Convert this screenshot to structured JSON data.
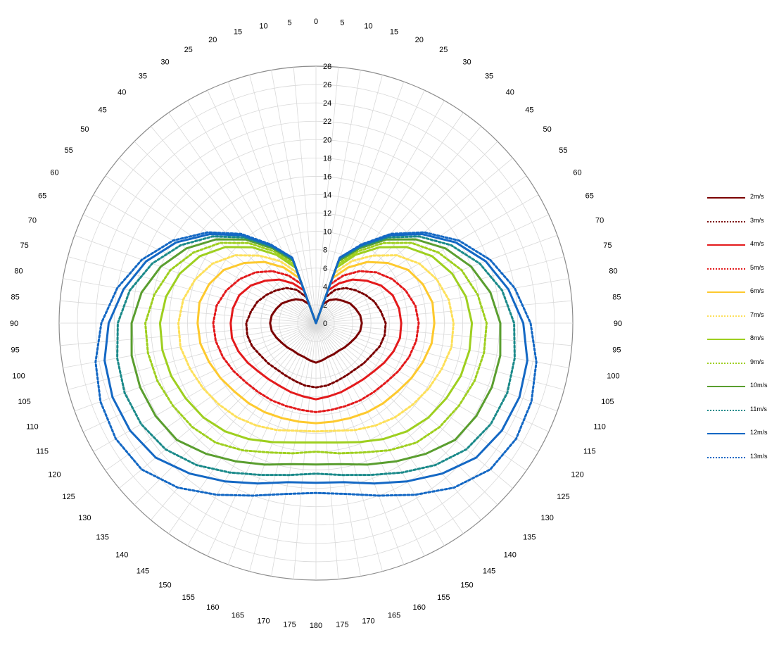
{
  "chart_data": {
    "type": "polar",
    "title": "",
    "radial_axis": {
      "min": 0,
      "max": 28,
      "tick_step": 2,
      "ticks": [
        "0",
        "2",
        "4",
        "6",
        "8",
        "10",
        "12",
        "14",
        "16",
        "18",
        "20",
        "22",
        "24",
        "26",
        "28"
      ]
    },
    "angular_axis": {
      "unit": "degrees",
      "step": 5,
      "mirrored": true,
      "right_labels": [
        "0",
        "5",
        "10",
        "15",
        "20",
        "25",
        "30",
        "35",
        "40",
        "45",
        "50",
        "55",
        "60",
        "65",
        "70",
        "75",
        "80",
        "85",
        "90",
        "95",
        "100",
        "105",
        "110",
        "115",
        "120",
        "125",
        "130",
        "135",
        "140",
        "145",
        "150",
        "155",
        "160",
        "165",
        "170",
        "175",
        "180"
      ],
      "left_labels": [
        "5",
        "10",
        "15",
        "20",
        "25",
        "30",
        "35",
        "40",
        "45",
        "50",
        "55",
        "60",
        "65",
        "70",
        "75",
        "80",
        "85",
        "90",
        "95",
        "100",
        "105",
        "110",
        "115",
        "120",
        "125",
        "130",
        "135",
        "140",
        "145",
        "150",
        "155",
        "160",
        "165",
        "170",
        "175"
      ]
    },
    "grid": true,
    "legend_position": "right",
    "angles": [
      0,
      20,
      30,
      40,
      50,
      60,
      70,
      80,
      90,
      100,
      110,
      120,
      130,
      140,
      150,
      160,
      170,
      180
    ],
    "series": [
      {
        "name": "2m/s",
        "color": "#7b0000",
        "style": "solid",
        "values": [
          0,
          2.2,
          2.9,
          3.4,
          3.8,
          4.3,
          4.6,
          4.9,
          5.0,
          4.9,
          4.6,
          4.3,
          4.1,
          3.9,
          3.9,
          3.9,
          4.1,
          4.3
        ]
      },
      {
        "name": "3m/s",
        "color": "#7b0000",
        "style": "dotted",
        "values": [
          0,
          3.0,
          4.2,
          5.0,
          5.6,
          6.2,
          6.8,
          7.2,
          7.6,
          7.6,
          7.4,
          7.0,
          6.8,
          6.6,
          6.6,
          6.7,
          6.9,
          7.0
        ]
      },
      {
        "name": "4m/s",
        "color": "#e31a1c",
        "style": "solid",
        "values": [
          0,
          3.8,
          5.0,
          6.2,
          7.2,
          8.2,
          8.9,
          9.2,
          9.3,
          9.3,
          9.0,
          8.6,
          8.2,
          8.0,
          7.9,
          8.0,
          8.1,
          8.3
        ]
      },
      {
        "name": "5m/s",
        "color": "#e31a1c",
        "style": "dotted",
        "values": [
          0,
          4.5,
          6.0,
          7.4,
          8.6,
          9.6,
          10.4,
          11.0,
          11.2,
          11.1,
          10.8,
          10.4,
          10.0,
          9.8,
          9.7,
          9.6,
          9.6,
          9.7
        ]
      },
      {
        "name": "6m/s",
        "color": "#fdc92e",
        "style": "solid",
        "values": [
          0,
          5.2,
          7.0,
          8.7,
          10.2,
          11.6,
          12.4,
          12.9,
          12.9,
          12.8,
          12.4,
          12.0,
          11.6,
          11.4,
          11.2,
          11.0,
          10.9,
          10.9
        ]
      },
      {
        "name": "7m/s",
        "color": "#fde05a",
        "style": "dotted",
        "values": [
          0,
          5.8,
          7.8,
          9.6,
          11.5,
          13.0,
          14.0,
          14.7,
          15.0,
          15.0,
          14.6,
          14.2,
          13.8,
          13.4,
          12.9,
          12.4,
          11.9,
          11.8
        ]
      },
      {
        "name": "8m/s",
        "color": "#9ecf1f",
        "style": "solid",
        "values": [
          0,
          6.4,
          8.6,
          10.8,
          12.9,
          14.6,
          15.8,
          16.6,
          17.0,
          17.0,
          16.8,
          16.4,
          16.0,
          15.4,
          14.6,
          13.8,
          13.2,
          13.0
        ]
      },
      {
        "name": "9m/s",
        "color": "#9ecf1f",
        "style": "dotted",
        "values": [
          0,
          6.8,
          9.0,
          11.4,
          13.6,
          15.4,
          16.9,
          17.9,
          18.6,
          18.6,
          18.4,
          18.0,
          17.6,
          17.0,
          16.0,
          15.0,
          14.4,
          14.0
        ]
      },
      {
        "name": "10m/s",
        "color": "#5a9e2f",
        "style": "solid",
        "values": [
          0,
          7.2,
          9.4,
          11.9,
          14.2,
          16.3,
          18.0,
          19.3,
          20.1,
          20.4,
          20.4,
          20.2,
          19.8,
          18.6,
          17.4,
          16.4,
          15.6,
          15.4
        ]
      },
      {
        "name": "11m/s",
        "color": "#1b8a8a",
        "style": "dotted",
        "values": [
          0,
          7.4,
          9.6,
          12.2,
          14.7,
          17.0,
          19.0,
          20.6,
          21.6,
          22.0,
          22.2,
          22.0,
          21.4,
          20.2,
          18.8,
          17.6,
          16.8,
          16.4
        ]
      },
      {
        "name": "12m/s",
        "color": "#1468c4",
        "style": "solid",
        "values": [
          0,
          7.6,
          9.8,
          12.5,
          15.1,
          17.6,
          19.7,
          21.3,
          22.6,
          23.4,
          23.6,
          23.4,
          22.8,
          21.4,
          19.9,
          18.6,
          17.6,
          17.4
        ]
      },
      {
        "name": "13m/s",
        "color": "#1468c4",
        "style": "dotted",
        "values": [
          0,
          7.6,
          9.9,
          12.7,
          15.4,
          18.0,
          20.2,
          22.0,
          23.4,
          24.4,
          25.0,
          25.2,
          24.8,
          23.4,
          21.6,
          20.0,
          18.9,
          18.5
        ]
      }
    ]
  }
}
